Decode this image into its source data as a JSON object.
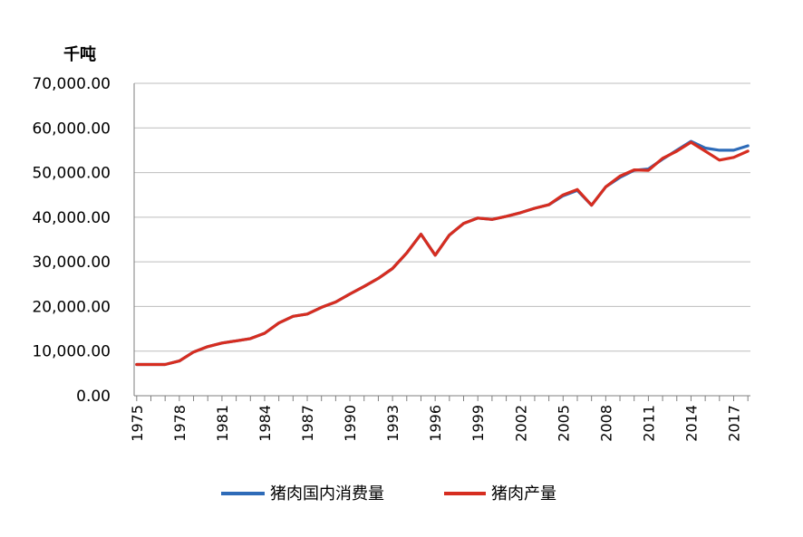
{
  "chart_data": {
    "type": "line",
    "unit_label": "千吨",
    "x": [
      1975,
      1976,
      1977,
      1978,
      1979,
      1980,
      1981,
      1982,
      1983,
      1984,
      1985,
      1986,
      1987,
      1988,
      1989,
      1990,
      1991,
      1992,
      1993,
      1994,
      1995,
      1996,
      1997,
      1998,
      1999,
      2000,
      2001,
      2002,
      2003,
      2004,
      2005,
      2006,
      2007,
      2008,
      2009,
      2010,
      2011,
      2012,
      2013,
      2014,
      2015,
      2016,
      2017,
      2018
    ],
    "x_tick_labels": [
      "1975",
      "1978",
      "1981",
      "1984",
      "1987",
      "1990",
      "1993",
      "1996",
      "1999",
      "2002",
      "2005",
      "2008",
      "2011",
      "2014",
      "2017"
    ],
    "y_tick_labels": [
      "0.00",
      "10,000.00",
      "20,000.00",
      "30,000.00",
      "40,000.00",
      "50,000.00",
      "60,000.00",
      "70,000.00"
    ],
    "ylim": [
      0,
      70000
    ],
    "y_ticks": [
      0,
      10000,
      20000,
      30000,
      40000,
      50000,
      60000,
      70000
    ],
    "grid": true,
    "legend_position": "bottom",
    "series": [
      {
        "name": "猪肉国内消费量",
        "color": "#2e6bb8",
        "values": [
          7000,
          7000,
          7000,
          7800,
          9800,
          11000,
          11800,
          12300,
          12800,
          14000,
          16300,
          17800,
          18300,
          19800,
          21000,
          22800,
          24500,
          26300,
          28500,
          32000,
          36200,
          31500,
          36000,
          38600,
          39800,
          39500,
          40200,
          41000,
          42000,
          42800,
          44800,
          46000,
          42700,
          46800,
          48900,
          50500,
          50800,
          53000,
          55000,
          57000,
          55500,
          55000,
          55000,
          56000
        ]
      },
      {
        "name": "猪肉产量",
        "color": "#d62d20",
        "values": [
          7000,
          7000,
          7000,
          7800,
          9800,
          11000,
          11800,
          12300,
          12800,
          14000,
          16300,
          17800,
          18300,
          19800,
          21000,
          22800,
          24500,
          26300,
          28500,
          32000,
          36200,
          31500,
          36000,
          38600,
          39800,
          39500,
          40200,
          41000,
          42000,
          42800,
          45000,
          46200,
          42700,
          46800,
          49200,
          50600,
          50500,
          53200,
          54800,
          56800,
          54800,
          52800,
          53400,
          54800
        ]
      }
    ]
  }
}
